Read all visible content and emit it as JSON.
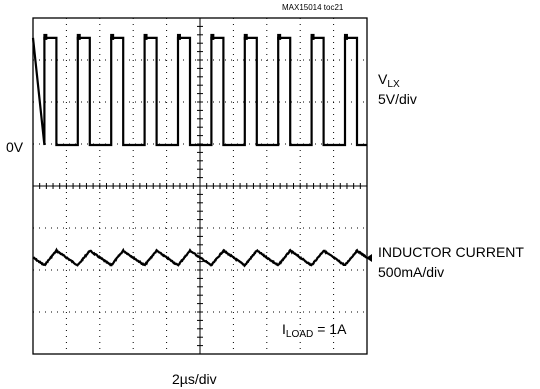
{
  "chart_data": {
    "type": "line",
    "chart_id": "MAX15014 toc21",
    "time_scale": "2µs/div",
    "horizontal_divisions": 10,
    "vertical_divisions": 8,
    "series": [
      {
        "name_main": "V",
        "name_sub": "LX",
        "scale": "5V/div",
        "zero_label": "0V",
        "waveform": "square",
        "period_div": 1.0,
        "duty_cycle": 0.36,
        "low_level_div": 0,
        "high_level_div": 2.55
      },
      {
        "name": "INDUCTOR CURRENT",
        "scale": "500mA/div",
        "waveform": "triangle",
        "period_div": 1.0,
        "peak_to_peak_div": 0.35
      }
    ],
    "annotation": {
      "main": "I",
      "sub": "LOAD",
      "rest": " = 1A"
    },
    "grid": true
  }
}
